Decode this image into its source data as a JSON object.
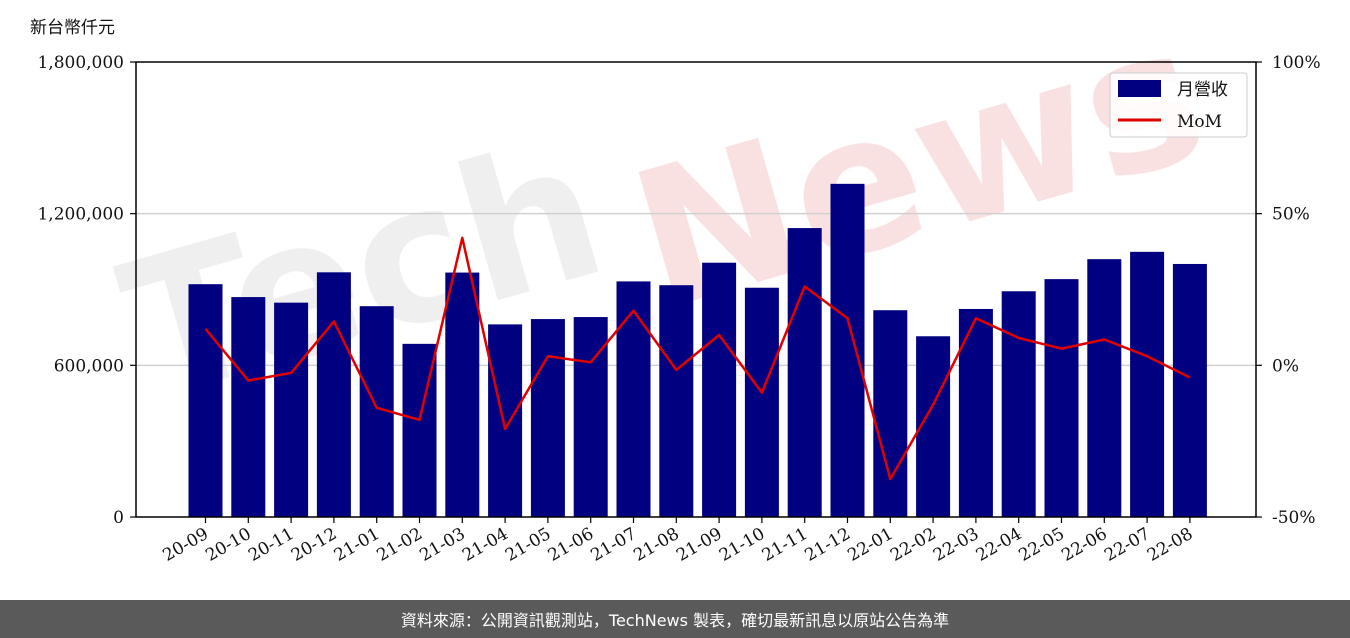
{
  "chart_data": {
    "type": "bar",
    "y_unit_label": "新台幣仟元",
    "categories": [
      "20-09",
      "20-10",
      "20-11",
      "20-12",
      "21-01",
      "21-02",
      "21-03",
      "21-04",
      "21-05",
      "21-06",
      "21-07",
      "21-08",
      "21-09",
      "21-10",
      "21-11",
      "21-12",
      "22-01",
      "22-02",
      "22-03",
      "22-04",
      "22-05",
      "22-06",
      "22-07",
      "22-08"
    ],
    "series": [
      {
        "name": "月營收",
        "type": "bar",
        "axis": "left",
        "color": "#000080",
        "values": [
          921000,
          870000,
          848000,
          968000,
          834000,
          685000,
          967000,
          762000,
          783000,
          791000,
          932000,
          917000,
          1006000,
          907000,
          1143000,
          1318000,
          818000,
          715000,
          823000,
          893000,
          941000,
          1020000,
          1049000,
          1001000
        ]
      },
      {
        "name": "MoM",
        "type": "line",
        "axis": "right",
        "color": "#e00000",
        "values": [
          12,
          -5,
          -2.5,
          14.5,
          -14,
          -18,
          42,
          -21,
          3,
          1,
          18,
          -1.5,
          10,
          -9,
          26,
          15.5,
          -37.5,
          -13,
          15.5,
          9,
          5.5,
          8.5,
          3,
          -4
        ]
      }
    ],
    "y_left": {
      "ylim": [
        0,
        1800000
      ],
      "ticks": [
        0,
        600000,
        1200000,
        1800000
      ],
      "tick_labels": [
        "0",
        "600,000",
        "1,200,000",
        "1,800,000"
      ]
    },
    "y_right": {
      "ylim": [
        -50,
        100
      ],
      "ticks": [
        -50,
        0,
        50,
        100
      ],
      "tick_labels": [
        "-50%",
        "0%",
        "50%",
        "100%"
      ]
    },
    "grid": "horizontal",
    "legend": "top-right"
  },
  "watermark": {
    "text": "TechNews"
  },
  "footer": {
    "text": "資料來源：公開資訊觀測站，TechNews 製表，確切最新訊息以原站公告為準"
  }
}
